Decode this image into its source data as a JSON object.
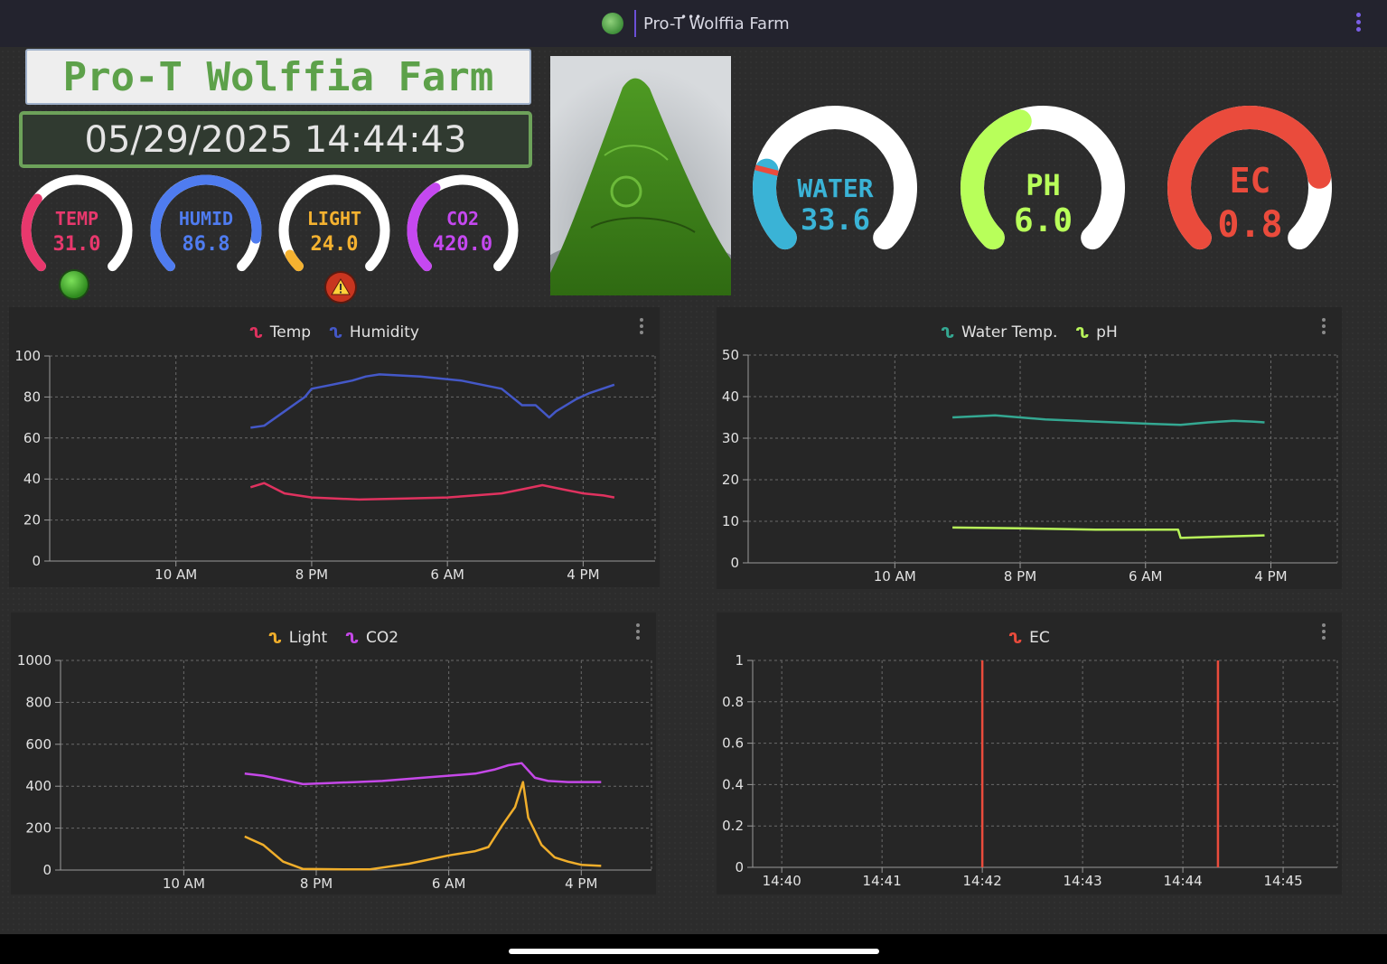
{
  "topbar": {
    "title": "Pro-T Wolffia Farm"
  },
  "header": {
    "farm_title": "Pro-T Wolffia Farm",
    "datetime": "05/29/2025 14:44:43"
  },
  "small_gauges": [
    {
      "label": "TEMP",
      "value": "31.0",
      "fraction": 0.31,
      "color": "#e8386d"
    },
    {
      "label": "HUMID",
      "value": "86.8",
      "fraction": 0.868,
      "color": "#4f7cf0"
    },
    {
      "label": "LIGHT",
      "value": "24.0",
      "fraction": 0.06,
      "color": "#f5b230"
    },
    {
      "label": "CO2",
      "value": "420.0",
      "fraction": 0.38,
      "color": "#c548f0"
    }
  ],
  "status_indicators": {
    "temp": "ok",
    "light": "warning"
  },
  "large_gauges": [
    {
      "label": "WATER",
      "value": "33.6",
      "fraction": 0.22,
      "color": "#3ab3d6",
      "marker": 0.22
    },
    {
      "label": "PH",
      "value": "6.0",
      "fraction": 0.43,
      "color": "#b8ff5a"
    },
    {
      "label": "EC",
      "value": "0.8",
      "fraction": 0.8,
      "color": "#ea4b3c"
    }
  ],
  "chart_data": [
    {
      "type": "line",
      "legend": [
        "Temp",
        "Humidity"
      ],
      "x_ticks": [
        "10 AM",
        "8 PM",
        "6 AM",
        "4 PM"
      ],
      "ylim": [
        0,
        100
      ],
      "y_ticks": [
        "0",
        "20",
        "40",
        "60",
        "80",
        "100"
      ],
      "x_hours": [
        0,
        10,
        20,
        30
      ],
      "x_range": [
        -9.3,
        35.3
      ],
      "series": [
        {
          "name": "Temp",
          "color": "#e0325f",
          "points": [
            [
              5.5,
              36
            ],
            [
              6.5,
              38
            ],
            [
              8,
              33
            ],
            [
              10,
              31
            ],
            [
              13.5,
              30
            ],
            [
              17,
              30.5
            ],
            [
              20,
              31
            ],
            [
              22,
              32
            ],
            [
              24,
              33
            ],
            [
              25.5,
              35
            ],
            [
              27,
              37
            ],
            [
              28.5,
              35
            ],
            [
              30,
              33
            ],
            [
              31.5,
              32
            ],
            [
              32.3,
              31
            ]
          ]
        },
        {
          "name": "Humidity",
          "color": "#4458c8",
          "points": [
            [
              5.5,
              65
            ],
            [
              6.5,
              66
            ],
            [
              8,
              73
            ],
            [
              9.5,
              80
            ],
            [
              10,
              84
            ],
            [
              11.5,
              86
            ],
            [
              13,
              88
            ],
            [
              14,
              90
            ],
            [
              15,
              91
            ],
            [
              18,
              90
            ],
            [
              21,
              88
            ],
            [
              24,
              84
            ],
            [
              25.5,
              76
            ],
            [
              26.5,
              76
            ],
            [
              27.5,
              70
            ],
            [
              28,
              73
            ],
            [
              29.5,
              79
            ],
            [
              30.5,
              82
            ],
            [
              32.3,
              86
            ]
          ]
        }
      ]
    },
    {
      "type": "line",
      "legend": [
        "Water Temp.",
        "pH"
      ],
      "x_ticks": [
        "10 AM",
        "8 PM",
        "6 AM",
        "4 PM"
      ],
      "ylim": [
        0,
        50
      ],
      "y_ticks": [
        "0",
        "10",
        "20",
        "30",
        "40",
        "50"
      ],
      "x_hours": [
        0,
        10,
        20,
        30
      ],
      "x_range": [
        -11.7,
        35.3
      ],
      "series": [
        {
          "name": "Water Temp.",
          "color": "#34a892",
          "points": [
            [
              4.6,
              35
            ],
            [
              8,
              35.5
            ],
            [
              12,
              34.5
            ],
            [
              16,
              34
            ],
            [
              20,
              33.5
            ],
            [
              22.8,
              33.2
            ],
            [
              25,
              33.8
            ],
            [
              27,
              34.2
            ],
            [
              28.5,
              34
            ],
            [
              29.5,
              33.8
            ]
          ]
        },
        {
          "name": "pH",
          "color": "#b8f55a",
          "points": [
            [
              4.6,
              8.5
            ],
            [
              10,
              8.3
            ],
            [
              16,
              8
            ],
            [
              22.6,
              8
            ],
            [
              22.8,
              6
            ],
            [
              26,
              6.3
            ],
            [
              29.5,
              6.6
            ]
          ]
        }
      ]
    },
    {
      "type": "line",
      "legend": [
        "Light",
        "CO2"
      ],
      "x_ticks": [
        "10 AM",
        "8 PM",
        "6 AM",
        "4 PM"
      ],
      "ylim": [
        0,
        1000
      ],
      "y_ticks": [
        "0",
        "200",
        "400",
        "600",
        "800",
        "1000"
      ],
      "x_hours": [
        0,
        10,
        20,
        30
      ],
      "x_range": [
        -9.3,
        35.3
      ],
      "series": [
        {
          "name": "Light",
          "color": "#f0ae2b",
          "points": [
            [
              4.6,
              160
            ],
            [
              6,
              120
            ],
            [
              7.5,
              40
            ],
            [
              9,
              5
            ],
            [
              12,
              3
            ],
            [
              14,
              3
            ],
            [
              17,
              30
            ],
            [
              20,
              70
            ],
            [
              22,
              90
            ],
            [
              23,
              110
            ],
            [
              24,
              210
            ],
            [
              25,
              300
            ],
            [
              25.6,
              420
            ],
            [
              26,
              250
            ],
            [
              27,
              120
            ],
            [
              28,
              60
            ],
            [
              29,
              40
            ],
            [
              30,
              25
            ],
            [
              31.5,
              20
            ]
          ]
        },
        {
          "name": "CO2",
          "color": "#c548e8",
          "points": [
            [
              4.6,
              460
            ],
            [
              6,
              450
            ],
            [
              7.5,
              430
            ],
            [
              9,
              410
            ],
            [
              11,
              415
            ],
            [
              13,
              420
            ],
            [
              15,
              425
            ],
            [
              18,
              440
            ],
            [
              22,
              460
            ],
            [
              23.5,
              480
            ],
            [
              24.5,
              500
            ],
            [
              25.5,
              510
            ],
            [
              26.5,
              440
            ],
            [
              27.5,
              425
            ],
            [
              29,
              420
            ],
            [
              31.5,
              420
            ]
          ]
        }
      ]
    },
    {
      "type": "line",
      "legend": [
        "EC"
      ],
      "x_ticks": [
        "14:40",
        "14:41",
        "14:42",
        "14:43",
        "14:44",
        "14:45"
      ],
      "ylim": [
        0,
        1
      ],
      "y_ticks": [
        "0",
        "0.2",
        "0.4",
        "0.6",
        "0.8",
        "1"
      ],
      "x_minutes": [
        0,
        1,
        2,
        3,
        4,
        5
      ],
      "x_range": [
        -0.29,
        5.54
      ],
      "series": [
        {
          "name": "EC",
          "color": "#ea4b3c",
          "spikes": [
            2.0,
            4.35
          ]
        }
      ]
    }
  ]
}
